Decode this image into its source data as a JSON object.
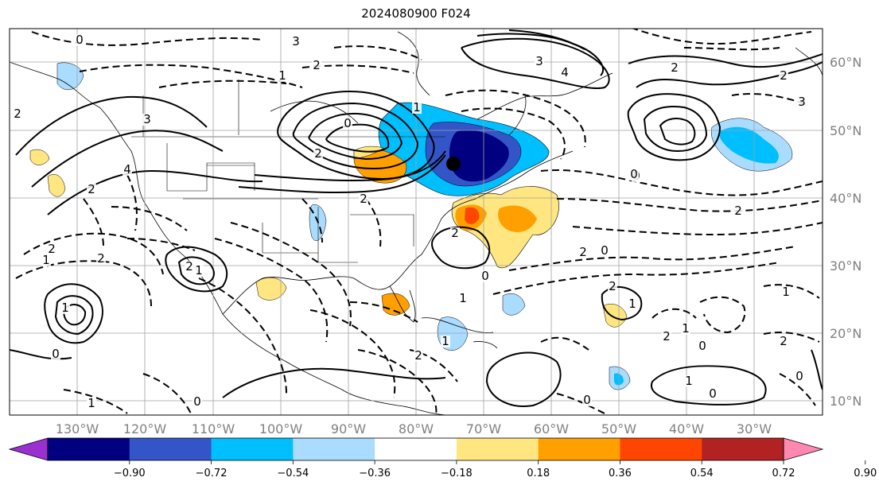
{
  "title": "2024080900 F024",
  "lon_labels": [
    "130°W",
    "120°W",
    "110°W",
    "100°W",
    "90°W",
    "80°W",
    "70°W",
    "60°W",
    "50°W",
    "40°W",
    "30°W"
  ],
  "lat_labels": [
    "60°N",
    "50°N",
    "40°N",
    "30°N",
    "20°N",
    "10°N"
  ],
  "colorbar": {
    "ticks": [
      "−0.90",
      "−0.72",
      "−0.54",
      "−0.36",
      "−0.18",
      "0.18",
      "0.36",
      "0.54",
      "0.72",
      "0.90"
    ],
    "colors": [
      "#9b30d0",
      "#000080",
      "#3455c8",
      "#00bfff",
      "#aadcff",
      "#ffffff",
      "#ffe680",
      "#ffa000",
      "#ff4500",
      "#b22222",
      "#ff88b0"
    ]
  },
  "contour_labels": [
    "0",
    "3",
    "2",
    "1",
    "2",
    "3",
    "4",
    "2",
    "0",
    "3",
    "2",
    "3",
    "0",
    "2",
    "1",
    "2",
    "2",
    "4",
    "2",
    "2",
    "1",
    "2",
    "0",
    "1",
    "2",
    "1",
    "2",
    "0",
    "0",
    "1",
    "2",
    "0",
    "0",
    "1",
    "1",
    "2",
    "0",
    "1",
    "2",
    "1",
    "0",
    "2",
    "2",
    "0",
    "1",
    "1",
    "0"
  ]
}
